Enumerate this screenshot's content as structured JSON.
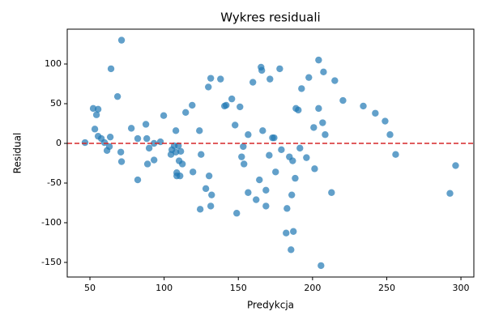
{
  "chart_data": {
    "type": "scatter",
    "title": "Wykres residuali",
    "x_label": "Predykcja",
    "y_label": "Residual",
    "color": "#1f77b4",
    "reference_line": 0,
    "reference_color": "#d62728",
    "xlim": [
      34.7,
      308.7
    ],
    "ylim": [
      -168.4,
      143.9
    ],
    "xticks": [
      50,
      100,
      150,
      200,
      250,
      300
    ],
    "yticks": [
      -150,
      -100,
      -50,
      0,
      50,
      100
    ],
    "x": [
      46.7,
      52.2,
      55.5,
      53.3,
      54.4,
      55.5,
      57.7,
      59.8,
      61.5,
      63.1,
      63.7,
      64.2,
      68.6,
      71.3,
      70.8,
      71.3,
      77.9,
      82.2,
      82.2,
      87.7,
      88.3,
      88.8,
      89.9,
      93.2,
      93.2,
      97.5,
      99.7,
      104.6,
      105.2,
      106.8,
      107.9,
      107.9,
      108.5,
      108.5,
      109.6,
      110.1,
      110.7,
      111.2,
      112.3,
      114.5,
      118.9,
      119.4,
      123.8,
      124.3,
      124.9,
      128.1,
      129.8,
      130.3,
      131.4,
      131.4,
      132.0,
      138.0,
      140.7,
      141.8,
      145.6,
      147.8,
      148.9,
      151.1,
      152.2,
      153.3,
      153.8,
      156.6,
      156.6,
      159.8,
      162.0,
      164.2,
      165.3,
      165.8,
      166.4,
      168.6,
      168.6,
      170.8,
      171.3,
      173.0,
      174.1,
      175.1,
      177.9,
      179.0,
      182.8,
      182.2,
      184.4,
      185.5,
      186.0,
      186.6,
      187.1,
      188.3,
      188.8,
      190.4,
      191.5,
      192.6,
      195.9,
      197.5,
      200.8,
      201.4,
      204.1,
      204.1,
      205.7,
      206.8,
      207.4,
      208.5,
      212.8,
      215.0,
      220.5,
      234.2,
      242.3,
      248.9,
      252.2,
      256.0,
      292.6,
      296.4
    ],
    "values": [
      1,
      44,
      43,
      18,
      36,
      9,
      6,
      1,
      -9,
      -4,
      8,
      94,
      59,
      130,
      -11,
      -23,
      19,
      -46,
      6,
      24,
      6,
      -26,
      -6,
      0,
      -21,
      2,
      35,
      -14,
      -8,
      -3,
      16,
      -11,
      -37,
      -41,
      -3,
      -22,
      -41,
      -10,
      -26,
      39,
      48,
      -36,
      16,
      -83,
      -14,
      -57,
      71,
      -41,
      82,
      -79,
      -65,
      81,
      47,
      48,
      56,
      23,
      -88,
      46,
      -17,
      -4,
      -26,
      11,
      -62,
      77,
      -71,
      -46,
      96,
      92,
      16,
      -59,
      -79,
      -15,
      81,
      7,
      7,
      -36,
      94,
      -8,
      -82,
      -113,
      -17,
      -134,
      -65,
      -22,
      -111,
      -44,
      44,
      42,
      -6,
      69,
      -18,
      83,
      20,
      -32,
      105,
      44,
      -154,
      26,
      90,
      11,
      -62,
      79,
      54,
      47,
      38,
      28,
      11,
      -14,
      -63,
      -28
    ]
  }
}
